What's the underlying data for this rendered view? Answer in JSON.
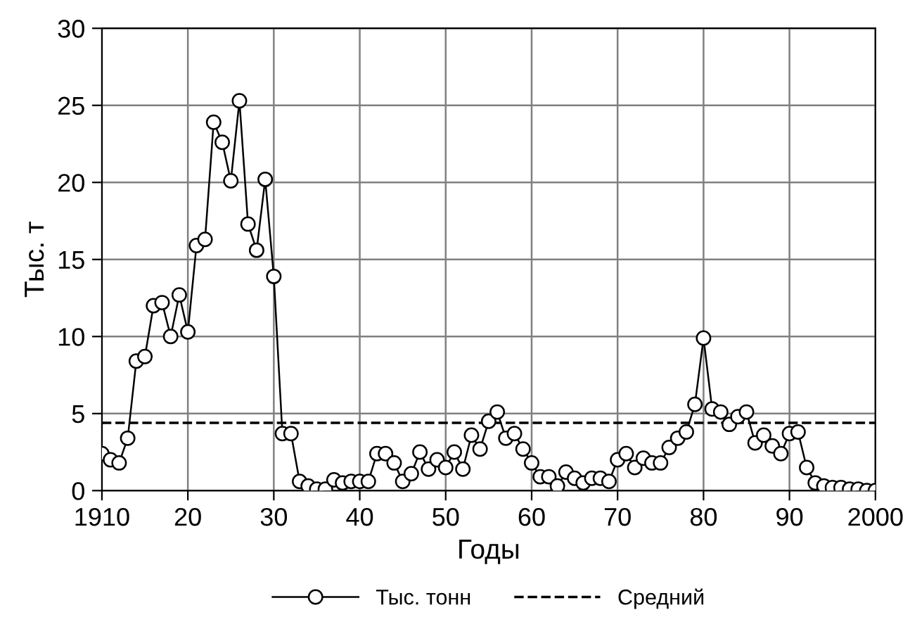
{
  "chart_data": {
    "type": "line",
    "xlabel": "Годы",
    "ylabel": "Тыс. т",
    "x": [
      1910,
      1911,
      1912,
      1913,
      1914,
      1915,
      1916,
      1917,
      1918,
      1919,
      1920,
      1921,
      1922,
      1923,
      1924,
      1925,
      1926,
      1927,
      1928,
      1929,
      1930,
      1931,
      1932,
      1933,
      1934,
      1935,
      1936,
      1937,
      1938,
      1939,
      1940,
      1941,
      1942,
      1943,
      1944,
      1945,
      1946,
      1947,
      1948,
      1949,
      1950,
      1951,
      1952,
      1953,
      1954,
      1955,
      1956,
      1957,
      1958,
      1959,
      1960,
      1961,
      1962,
      1963,
      1964,
      1965,
      1966,
      1967,
      1968,
      1969,
      1970,
      1971,
      1972,
      1973,
      1974,
      1975,
      1976,
      1977,
      1978,
      1979,
      1980,
      1981,
      1982,
      1983,
      1984,
      1985,
      1986,
      1987,
      1988,
      1989,
      1990,
      1991,
      1992,
      1993,
      1994,
      1995,
      1996,
      1997,
      1998,
      1999,
      2000
    ],
    "series": [
      {
        "name": "Тыс. тонн",
        "color": "#000000",
        "values": [
          2.4,
          2.0,
          1.8,
          3.4,
          8.4,
          8.7,
          12.0,
          12.2,
          10.0,
          12.7,
          10.3,
          15.9,
          16.3,
          23.9,
          22.6,
          20.1,
          25.3,
          17.3,
          15.6,
          20.2,
          13.9,
          3.7,
          3.7,
          0.6,
          0.3,
          0.1,
          0.1,
          0.7,
          0.5,
          0.6,
          0.6,
          0.6,
          2.4,
          2.4,
          1.8,
          0.6,
          1.1,
          2.5,
          1.4,
          2.0,
          1.5,
          2.5,
          1.4,
          3.6,
          2.7,
          4.5,
          5.1,
          3.4,
          3.7,
          2.7,
          1.8,
          0.9,
          0.9,
          0.3,
          1.2,
          0.8,
          0.5,
          0.8,
          0.8,
          0.6,
          2.0,
          2.4,
          1.5,
          2.1,
          1.8,
          1.8,
          2.8,
          3.4,
          3.8,
          5.6,
          9.9,
          5.3,
          5.1,
          4.3,
          4.8,
          5.1,
          3.1,
          3.6,
          2.9,
          2.4,
          3.7,
          3.8,
          1.5,
          0.5,
          0.3,
          0.2,
          0.2,
          0.1,
          0.1,
          0.0,
          0.0
        ]
      }
    ],
    "ref_lines": [
      {
        "axis": "y",
        "value": 4.4,
        "label": "Средний",
        "color": "#000000",
        "line_style": "dashed"
      }
    ],
    "xlim": [
      1910,
      2000
    ],
    "xticks": [
      1910,
      {
        "value": 1920,
        "label": "20"
      },
      {
        "value": 1930,
        "label": "30"
      },
      {
        "value": 1940,
        "label": "40"
      },
      {
        "value": 1950,
        "label": "50"
      },
      {
        "value": 1960,
        "label": "60"
      },
      {
        "value": 1970,
        "label": "70"
      },
      {
        "value": 1980,
        "label": "80"
      },
      {
        "value": 1990,
        "label": "90"
      },
      2000
    ],
    "ylim": [
      0,
      30
    ],
    "yticks": [
      0,
      5,
      10,
      15,
      20,
      25,
      30
    ],
    "grid": true,
    "legend": "bottom",
    "marker": "circle",
    "line_style": "solid"
  }
}
